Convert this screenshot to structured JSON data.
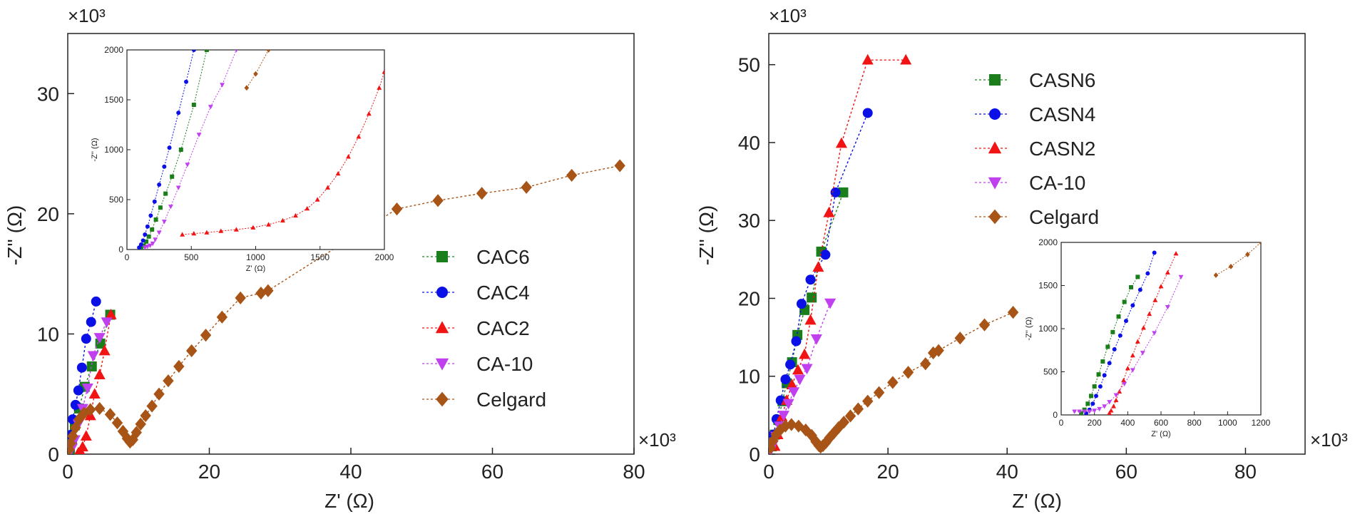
{
  "chart_data": [
    {
      "id": "left",
      "type": "scatter",
      "xlabel": "Z' (Ω)",
      "ylabel": "-Z'' (Ω)",
      "xmultiplier": "×10³",
      "ymultiplier": "×10³",
      "xlim": [
        0,
        80
      ],
      "ylim": [
        0,
        35
      ],
      "xticks": [
        0,
        20,
        40,
        60,
        80
      ],
      "yticks": [
        0,
        10,
        20,
        30
      ],
      "legend_position": "center-right",
      "series": [
        {
          "name": "CAC6",
          "color": "#1a7f1a",
          "marker": "square",
          "x": [
            0.3,
            0.6,
            1.0,
            1.6,
            2.4,
            3.4,
            4.6,
            6.0
          ],
          "y": [
            0.3,
            1.2,
            2.4,
            3.8,
            5.6,
            7.3,
            9.2,
            11.6
          ]
        },
        {
          "name": "CAC4",
          "color": "#0a10e6",
          "marker": "circle",
          "x": [
            0.2,
            0.4,
            0.7,
            1.1,
            1.5,
            2.0,
            2.6,
            3.3,
            4.0
          ],
          "y": [
            0.4,
            1.6,
            2.9,
            4.1,
            5.3,
            7.2,
            9.6,
            11.0,
            12.7
          ]
        },
        {
          "name": "CAC2",
          "color": "#f01414",
          "marker": "triangle-up",
          "x": [
            1.5,
            1.8,
            2.1,
            2.6,
            3.2,
            3.8,
            4.5,
            5.2,
            6.1
          ],
          "y": [
            0.1,
            0.2,
            0.6,
            1.5,
            3.2,
            5.0,
            6.6,
            8.6,
            11.6
          ]
        },
        {
          "name": "CA-10",
          "color": "#c040f0",
          "marker": "triangle-down",
          "x": [
            0.3,
            0.6,
            1.0,
            1.5,
            2.1,
            2.8,
            3.6,
            4.5,
            5.5
          ],
          "y": [
            0.2,
            0.5,
            1.2,
            2.5,
            3.8,
            5.5,
            8.2,
            9.7,
            11.0
          ]
        },
        {
          "name": "Celgard",
          "color": "#a85416",
          "marker": "diamond",
          "x": [
            0.2,
            0.4,
            0.7,
            1.1,
            1.6,
            2.3,
            3.2,
            4.5,
            6.0,
            7.0,
            7.8,
            8.4,
            8.8,
            9.2,
            9.7,
            10.3,
            11.0,
            11.9,
            12.9,
            14.2,
            15.7,
            17.5,
            19.5,
            21.8,
            24.4,
            27.3,
            28.3,
            46.5,
            52.3,
            58.5,
            64.8,
            71.2,
            78.0
          ],
          "y": [
            0.4,
            0.9,
            1.5,
            2.2,
            2.9,
            3.4,
            3.7,
            3.8,
            3.3,
            2.6,
            1.9,
            1.3,
            1.0,
            1.2,
            1.8,
            2.5,
            3.2,
            4.0,
            5.0,
            6.1,
            7.3,
            8.6,
            9.9,
            11.4,
            13.0,
            13.4,
            13.6,
            20.4,
            21.1,
            21.7,
            22.2,
            23.2,
            24.0
          ]
        }
      ],
      "inset": {
        "xlabel": "Z' (Ω)",
        "ylabel": "-Z'' (Ω)",
        "xlim": [
          0,
          2000
        ],
        "ylim": [
          0,
          2000
        ],
        "xticks": [
          0,
          500,
          1000,
          1500,
          2000
        ],
        "yticks": [
          0,
          500,
          1000,
          1500,
          2000
        ],
        "series": [
          {
            "name": "CAC6",
            "x": [
              110,
              130,
              150,
              170,
              195,
              225,
              260,
              300,
              350,
              420,
              520,
              620
            ],
            "y": [
              20,
              40,
              80,
              130,
              200,
              300,
              420,
              560,
              730,
              1000,
              1450,
              2000
            ]
          },
          {
            "name": "CAC4",
            "x": [
              95,
              110,
              125,
              140,
              160,
              185,
              215,
              250,
              290,
              330,
              400,
              460,
              520
            ],
            "y": [
              20,
              50,
              90,
              150,
              230,
              340,
              480,
              650,
              830,
              1020,
              1370,
              1680,
              2000
            ]
          },
          {
            "name": "CAC2",
            "x": [
              430,
              520,
              620,
              730,
              850,
              980,
              1100,
              1210,
              1310,
              1400,
              1480,
              1560,
              1640,
              1720,
              1800,
              1880,
              1960,
              2000
            ],
            "y": [
              150,
              160,
              170,
              185,
              200,
              220,
              250,
              290,
              340,
              410,
              500,
              620,
              760,
              930,
              1130,
              1360,
              1620,
              1780
            ]
          },
          {
            "name": "CA-10",
            "x": [
              140,
              160,
              180,
              200,
              220,
              250,
              290,
              340,
              400,
              470,
              560,
              650,
              740,
              850
            ],
            "y": [
              20,
              30,
              40,
              60,
              100,
              170,
              280,
              430,
              620,
              850,
              1150,
              1430,
              1650,
              2000
            ]
          },
          {
            "name": "Celgard",
            "x": [
              930,
              1000,
              1100
            ],
            "y": [
              1620,
              1760,
              2000
            ]
          }
        ]
      }
    },
    {
      "id": "right",
      "type": "scatter",
      "xlabel": "Z' (Ω)",
      "ylabel": "-Z'' (Ω)",
      "xmultiplier": "×10³",
      "ymultiplier": "×10³",
      "xlim": [
        0,
        90
      ],
      "ylim": [
        0,
        54
      ],
      "xticks": [
        0,
        20,
        40,
        60,
        80
      ],
      "yticks": [
        0,
        10,
        20,
        30,
        40,
        50
      ],
      "legend_position": "top-center",
      "series": [
        {
          "name": "CASN6",
          "color": "#1a7f1a",
          "marker": "square",
          "x": [
            0.5,
            1.0,
            1.6,
            2.3,
            3.0,
            3.9,
            4.8,
            6.0,
            7.2,
            8.8,
            12.5
          ],
          "y": [
            1.0,
            2.5,
            4.4,
            6.8,
            9.1,
            11.8,
            15.3,
            18.5,
            20.1,
            26.0,
            33.6
          ]
        },
        {
          "name": "CASN4",
          "color": "#0a10e6",
          "marker": "circle",
          "x": [
            0.4,
            0.8,
            1.3,
            2.0,
            2.8,
            3.6,
            4.6,
            5.5,
            7.0,
            9.5,
            11.2,
            16.6
          ],
          "y": [
            1.0,
            2.5,
            4.5,
            6.9,
            9.6,
            11.5,
            14.5,
            19.3,
            22.4,
            25.6,
            33.6,
            43.8
          ]
        },
        {
          "name": "CASN2",
          "color": "#f01414",
          "marker": "triangle-up",
          "x": [
            1.0,
            1.5,
            2.2,
            3.0,
            3.9,
            4.9,
            6.0,
            7.0,
            8.3,
            10.1,
            12.2,
            16.6,
            23.0
          ],
          "y": [
            1.0,
            2.5,
            4.8,
            6.9,
            8.9,
            10.8,
            12.8,
            17.2,
            24.0,
            31.0,
            39.9,
            50.6,
            50.6
          ]
        },
        {
          "name": "CA-10",
          "color": "#c040f0",
          "marker": "triangle-down",
          "x": [
            0.3,
            0.7,
            1.2,
            1.8,
            2.5,
            3.3,
            4.2,
            5.2,
            6.4,
            8.0,
            10.3
          ],
          "y": [
            0.5,
            1.2,
            2.3,
            3.6,
            5.0,
            6.5,
            8.0,
            9.6,
            11.0,
            14.8,
            19.4
          ],
          "note": ""
        },
        {
          "name": "Celgard",
          "color": "#a85416",
          "marker": "diamond",
          "x": [
            0.3,
            0.7,
            1.2,
            1.9,
            2.8,
            3.8,
            5.0,
            6.2,
            7.2,
            7.9,
            8.4,
            8.7,
            9.1,
            9.6,
            10.2,
            10.9,
            11.7,
            12.6,
            13.7,
            15.0,
            16.6,
            18.5,
            20.8,
            23.4,
            26.3,
            27.6,
            28.5,
            32.1,
            36.2,
            41.0
          ],
          "y": [
            0.8,
            1.7,
            2.5,
            3.1,
            3.6,
            3.8,
            3.6,
            3.1,
            2.4,
            1.6,
            1.1,
            0.9,
            1.1,
            1.5,
            2.1,
            2.7,
            3.4,
            4.1,
            4.9,
            5.8,
            6.8,
            7.9,
            9.2,
            10.5,
            11.6,
            13.0,
            13.3,
            14.9,
            16.6,
            18.2
          ]
        }
      ],
      "inset": {
        "xlabel": "Z' (Ω)",
        "ylabel": "-Z'' (Ω)",
        "xlim": [
          0,
          1200
        ],
        "ylim": [
          0,
          2000
        ],
        "xticks": [
          0,
          200,
          400,
          600,
          800,
          1000,
          1200
        ],
        "yticks": [
          0,
          500,
          1000,
          1500,
          2000
        ],
        "series": [
          {
            "name": "CASN6",
            "x": [
              120,
              140,
              160,
              180,
              200,
              225,
              250,
              280,
              310,
              345,
              380,
              420,
              460
            ],
            "y": [
              20,
              60,
              130,
              220,
              330,
              470,
              620,
              790,
              960,
              1140,
              1310,
              1480,
              1600
            ]
          },
          {
            "name": "CASN4",
            "x": [
              150,
              170,
              190,
              210,
              235,
              260,
              290,
              320,
              355,
              390,
              430,
              475,
              520,
              560
            ],
            "y": [
              20,
              60,
              130,
              220,
              330,
              460,
              600,
              760,
              920,
              1090,
              1270,
              1450,
              1640,
              1880
            ]
          },
          {
            "name": "CASN2",
            "x": [
              290,
              300,
              315,
              330,
              350,
              375,
              400,
              430,
              460,
              495,
              530,
              565,
              600,
              640,
              690
            ],
            "y": [
              20,
              50,
              100,
              170,
              270,
              400,
              540,
              690,
              850,
              1010,
              1170,
              1330,
              1490,
              1650,
              1870
            ]
          },
          {
            "name": "CA-10",
            "x": [
              80,
              110,
              140,
              170,
              200,
              230,
              260,
              290,
              330,
              380,
              430,
              490,
              560,
              640,
              720
            ],
            "y": [
              40,
              40,
              40,
              40,
              50,
              70,
              100,
              150,
              230,
              360,
              520,
              720,
              950,
              1250,
              1600
            ]
          },
          {
            "name": "Celgard",
            "x": [
              930,
              1020,
              1120,
              1200
            ],
            "y": [
              1620,
              1720,
              1860,
              2000
            ]
          }
        ]
      }
    }
  ]
}
